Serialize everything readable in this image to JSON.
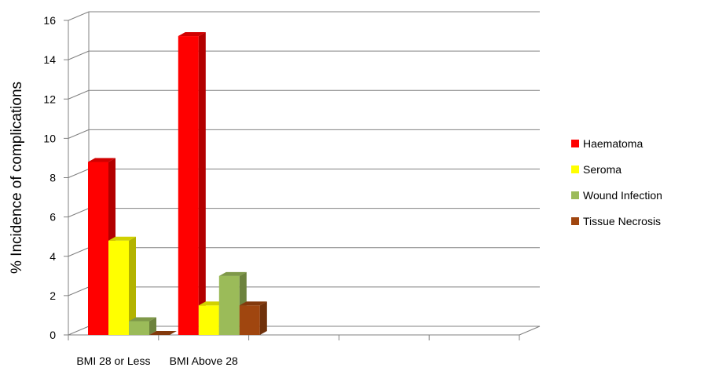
{
  "chart_data": {
    "type": "bar",
    "categories": [
      "BMI 28 or Less",
      "BMI Above 28",
      "",
      "",
      ""
    ],
    "series": [
      {
        "name": "Haematoma",
        "values": [
          8.8,
          15.2,
          null,
          null,
          null
        ],
        "color": "#ff0000"
      },
      {
        "name": "Seroma",
        "values": [
          4.8,
          1.5,
          null,
          null,
          null
        ],
        "color": "#ffff00"
      },
      {
        "name": "Wound Infection",
        "values": [
          0.7,
          3.0,
          null,
          null,
          null
        ],
        "color": "#9bbb59"
      },
      {
        "name": "Tissue Necrosis",
        "values": [
          0.0,
          1.5,
          null,
          null,
          null
        ],
        "color": "#a0460f"
      }
    ],
    "title": "",
    "xlabel": "",
    "ylabel": "% Incidence of complications",
    "ylim": [
      0,
      16
    ],
    "yticks": [
      0,
      2,
      4,
      6,
      8,
      10,
      12,
      14,
      16
    ],
    "grid": true,
    "legend": "right",
    "projection": "3d-clustered"
  }
}
